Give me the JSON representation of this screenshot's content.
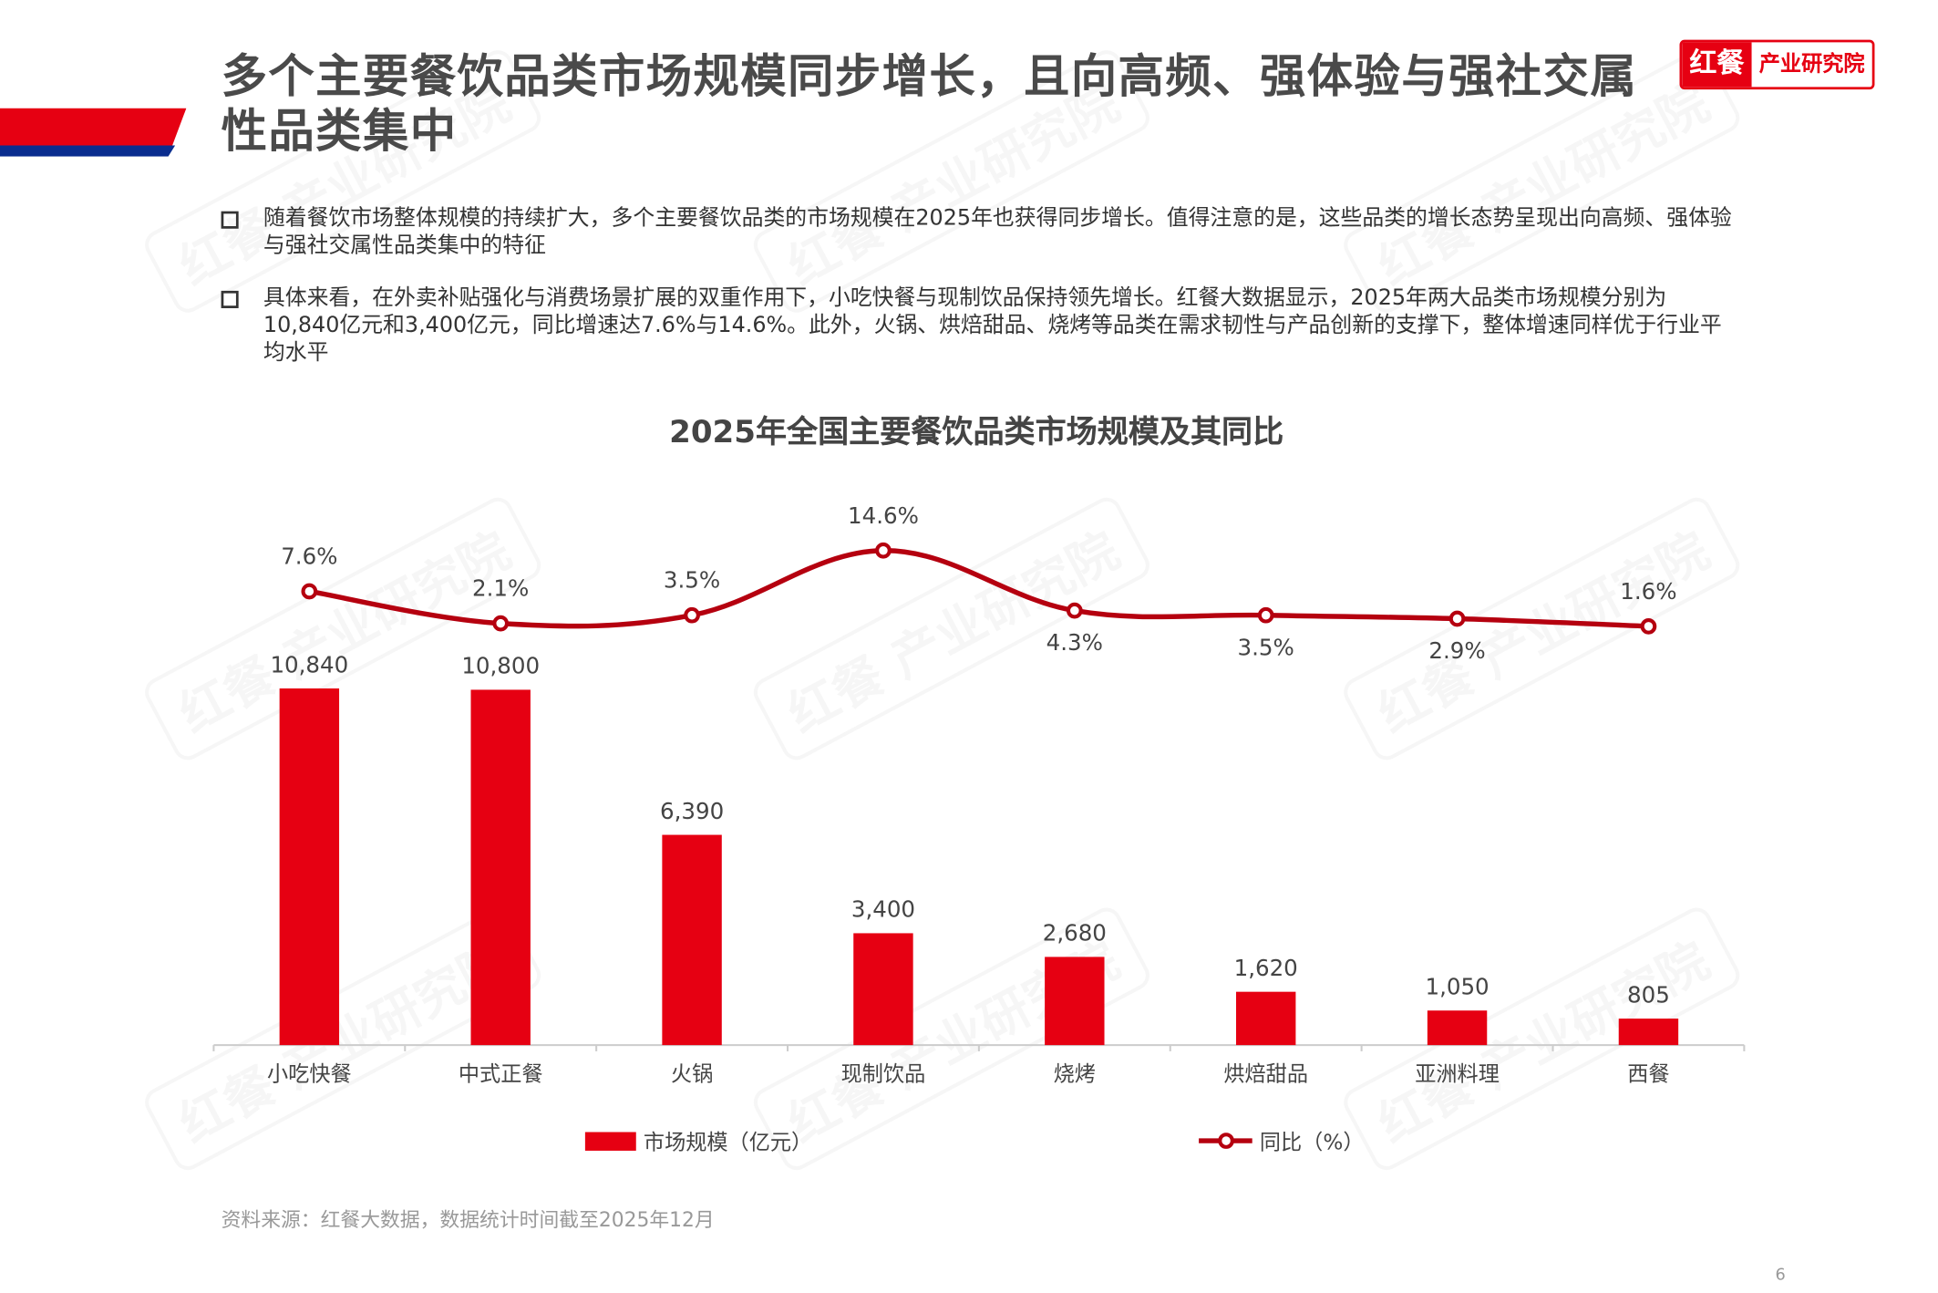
{
  "header": {
    "title": "多个主要餐饮品类市场规模同步增长，且向高频、强体验与强社交属性品类集中",
    "logo": {
      "part1": "红餐",
      "part2": "产业研究院"
    }
  },
  "bullets": [
    "随着餐饮市场整体规模的持续扩大，多个主要餐饮品类的市场规模在2025年也获得同步增长。值得注意的是，这些品类的增长态势呈现出向高频、强体验与强社交属性品类集中的特征",
    "具体来看，在外卖补贴强化与消费场景扩展的双重作用下，小吃快餐与现制饮品保持领先增长。红餐大数据显示，2025年两大品类市场规模分别为10,840亿元和3,400亿元，同比增速达7.6%与14.6%。此外，火锅、烘焙甜品、烧烤等品类在需求韧性与产品创新的支撑下，整体增速同样优于行业平均水平"
  ],
  "chart_data": {
    "type": "bar+line",
    "title": "2025年全国主要餐饮品类市场规模及其同比",
    "categories": [
      "小吃快餐",
      "中式正餐",
      "火锅",
      "现制饮品",
      "烧烤",
      "烘焙甜品",
      "亚洲料理",
      "西餐"
    ],
    "series": [
      {
        "name": "市场规模（亿元）",
        "type": "bar",
        "color": "#e60012",
        "values": [
          10840,
          10800,
          6390,
          3400,
          2680,
          1620,
          1050,
          805
        ],
        "labels": [
          "10,840",
          "10,800",
          "6,390",
          "3,400",
          "2,680",
          "1,620",
          "1,050",
          "805"
        ]
      },
      {
        "name": "同比（%）",
        "type": "line",
        "smooth": true,
        "color": "#b5000f",
        "values": [
          7.6,
          2.1,
          3.5,
          14.6,
          4.3,
          3.5,
          2.9,
          1.6
        ],
        "labels": [
          "7.6%",
          "2.1%",
          "3.5%",
          "14.6%",
          "4.3%",
          "3.5%",
          "2.9%",
          "1.6%"
        ]
      }
    ],
    "legend": "bottom",
    "grid": false
  },
  "footer": {
    "source": "资料来源：红餐大数据，数据统计时间截至2025年12月",
    "page_number": "6"
  }
}
